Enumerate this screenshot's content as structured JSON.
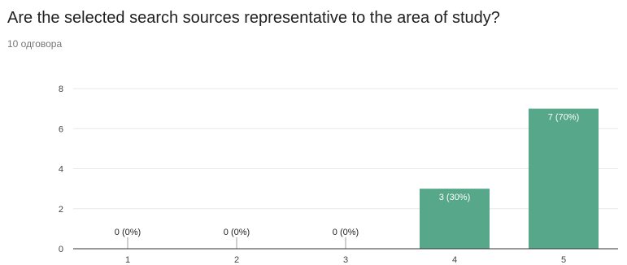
{
  "question": {
    "title": "Are the selected search sources representative to the area of study?",
    "responses_label": "10 одговора"
  },
  "colors": {
    "bar": "#57a78b",
    "grid": "#e8e8e8",
    "axis": "#333333",
    "tick_text": "#444444",
    "bar_label_inside": "#ffffff",
    "bar_label_outside": "#222222"
  },
  "chart_data": {
    "type": "bar",
    "title": "",
    "xlabel": "",
    "ylabel": "",
    "categories": [
      "1",
      "2",
      "3",
      "4",
      "5"
    ],
    "values": [
      0,
      0,
      0,
      3,
      7
    ],
    "data_labels": [
      "0 (0%)",
      "0 (0%)",
      "0 (0%)",
      "3 (30%)",
      "7 (70%)"
    ],
    "ylim": [
      0,
      8
    ],
    "yticks": [
      0,
      2,
      4,
      6,
      8
    ],
    "grid": true,
    "legend": "none"
  }
}
